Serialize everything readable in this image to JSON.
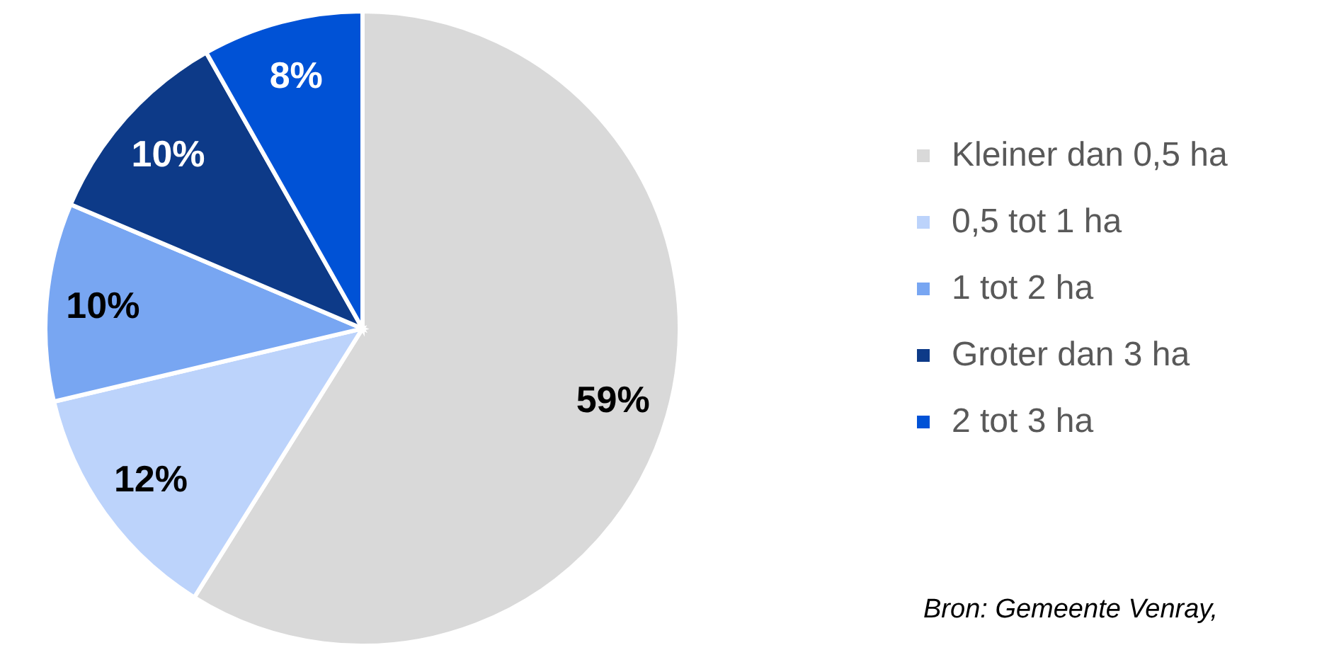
{
  "chart_data": {
    "type": "pie",
    "categories": [
      "Kleiner dan 0,5 ha",
      "0,5 tot 1 ha",
      "1 tot 2 ha",
      "Groter dan 3 ha",
      "2 tot 3 ha"
    ],
    "values": [
      58.9,
      12.4,
      10.1,
      10.4,
      8.2
    ],
    "colors": [
      "#d9d9d9",
      "#bcd3fb",
      "#78a6f2",
      "#0d3a88",
      "#0052d6"
    ],
    "value_labels": [
      "59%",
      "12%",
      "10%",
      "10%",
      "8%"
    ],
    "legend": "right",
    "annotations": [
      "Bron: Gemeente Venray,"
    ]
  }
}
